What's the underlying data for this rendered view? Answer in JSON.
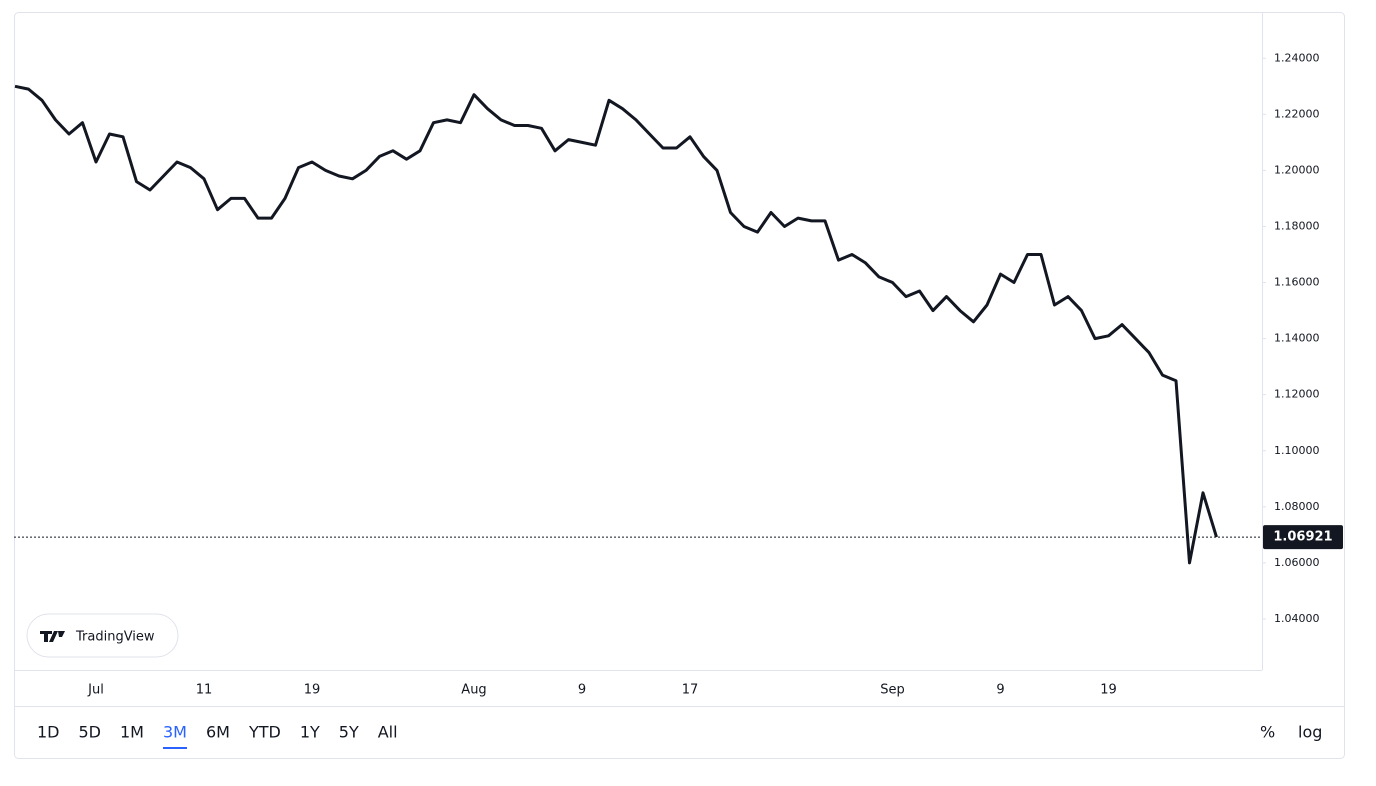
{
  "chart_data": {
    "type": "line",
    "categories": [
      null,
      null,
      null,
      null,
      null,
      null,
      "Jul",
      null,
      null,
      null,
      null,
      null,
      null,
      null,
      "11",
      null,
      null,
      null,
      null,
      null,
      null,
      null,
      "19",
      null,
      null,
      null,
      null,
      null,
      null,
      null,
      null,
      null,
      null,
      null,
      "Aug",
      null,
      null,
      null,
      null,
      null,
      null,
      null,
      "9",
      null,
      null,
      null,
      null,
      null,
      null,
      null,
      "17",
      null,
      null,
      null,
      null,
      null,
      null,
      null,
      null,
      null,
      null,
      null,
      null,
      null,
      null,
      "Sep",
      null,
      null,
      null,
      null,
      null,
      null,
      null,
      "9",
      null,
      null,
      null,
      null,
      null,
      null,
      null,
      "19",
      null,
      null,
      null,
      null,
      null,
      null,
      null,
      null
    ],
    "series": [
      {
        "color": "#131722",
        "values": [
          1.23,
          1.229,
          1.225,
          1.218,
          1.213,
          1.217,
          1.203,
          1.213,
          1.212,
          1.196,
          1.193,
          1.198,
          1.203,
          1.201,
          1.197,
          1.186,
          1.19,
          1.19,
          1.183,
          1.183,
          1.19,
          1.201,
          1.203,
          1.2,
          1.198,
          1.197,
          1.2,
          1.205,
          1.207,
          1.204,
          1.207,
          1.217,
          1.218,
          1.217,
          1.227,
          1.222,
          1.218,
          1.216,
          1.216,
          1.215,
          1.207,
          1.211,
          1.21,
          1.209,
          1.225,
          1.222,
          1.218,
          1.213,
          1.208,
          1.208,
          1.212,
          1.205,
          1.2,
          1.185,
          1.18,
          1.178,
          1.185,
          1.18,
          1.183,
          1.182,
          1.182,
          1.168,
          1.17,
          1.167,
          1.162,
          1.16,
          1.155,
          1.157,
          1.15,
          1.155,
          1.15,
          1.146,
          1.152,
          1.163,
          1.16,
          1.17,
          1.17,
          1.152,
          1.155,
          1.15,
          1.14,
          1.141,
          1.145,
          1.14,
          1.135,
          1.127,
          1.125,
          1.06,
          1.085,
          1.06921
        ]
      }
    ],
    "ylim": [
      1.0218,
      1.2565
    ],
    "yticks": [
      {
        "value": 1.04,
        "label": "1.04000"
      },
      {
        "value": 1.06,
        "label": "1.06000"
      },
      {
        "value": 1.08,
        "label": "1.08000"
      },
      {
        "value": 1.1,
        "label": "1.10000"
      },
      {
        "value": 1.12,
        "label": "1.12000"
      },
      {
        "value": 1.14,
        "label": "1.14000"
      },
      {
        "value": 1.16,
        "label": "1.16000"
      },
      {
        "value": 1.18,
        "label": "1.18000"
      },
      {
        "value": 1.2,
        "label": "1.20000"
      },
      {
        "value": 1.22,
        "label": "1.22000"
      },
      {
        "value": 1.24,
        "label": "1.24000"
      }
    ],
    "last_price": 1.06921,
    "log_scale": false,
    "grid": false
  },
  "brand": "TradingView",
  "range_buttons": [
    "1D",
    "5D",
    "1M",
    "3M",
    "6M",
    "YTD",
    "1Y",
    "5Y",
    "All"
  ],
  "active_range": "3M",
  "toggles": [
    "%",
    "log"
  ]
}
